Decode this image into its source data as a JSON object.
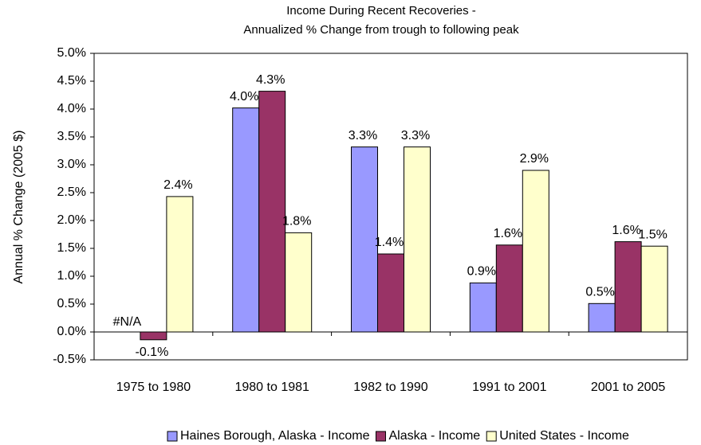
{
  "chart_data": {
    "type": "bar",
    "title": [
      "Income During Recent Recoveries -",
      "Annualized % Change from trough to following peak"
    ],
    "y_label": "Annual % Change (2005 $)",
    "categories": [
      "1975 to 1980",
      "1980 to 1981",
      "1982 to 1990",
      "1991 to 2001",
      "2001 to 2005"
    ],
    "series": [
      {
        "name": "Haines Borough, Alaska - Income",
        "color": "#9999ff",
        "values": [
          null,
          4.02,
          3.32,
          0.88,
          0.51
        ],
        "value_labels": [
          "#N/A",
          "4.0%",
          "3.3%",
          "0.9%",
          "0.5%"
        ]
      },
      {
        "name": "Alaska - Income",
        "color": "#993366",
        "values": [
          -0.14,
          4.32,
          1.4,
          1.56,
          1.62
        ],
        "value_labels": [
          "-0.1%",
          "4.3%",
          "1.4%",
          "1.6%",
          "1.6%"
        ]
      },
      {
        "name": "United States - Income",
        "color": "#ffffcc",
        "values": [
          2.43,
          1.78,
          3.32,
          2.9,
          1.54
        ],
        "value_labels": [
          "2.4%",
          "1.8%",
          "3.3%",
          "2.9%",
          "1.5%"
        ]
      }
    ],
    "ylim": [
      -0.5,
      5
    ],
    "yticks": [
      {
        "value": -0.5,
        "label": "-0.5%"
      },
      {
        "value": 0,
        "label": "0.0%"
      },
      {
        "value": 0.5,
        "label": "0.5%"
      },
      {
        "value": 1,
        "label": "1.0%"
      },
      {
        "value": 1.5,
        "label": "1.5%"
      },
      {
        "value": 2,
        "label": "2.0%"
      },
      {
        "value": 2.5,
        "label": "2.5%"
      },
      {
        "value": 3,
        "label": "3.0%"
      },
      {
        "value": 3.5,
        "label": "3.5%"
      },
      {
        "value": 4,
        "label": "4.0%"
      },
      {
        "value": 4.5,
        "label": "4.5%"
      },
      {
        "value": 5,
        "label": "5.0%"
      }
    ],
    "grid": false,
    "legend": "bottom"
  }
}
